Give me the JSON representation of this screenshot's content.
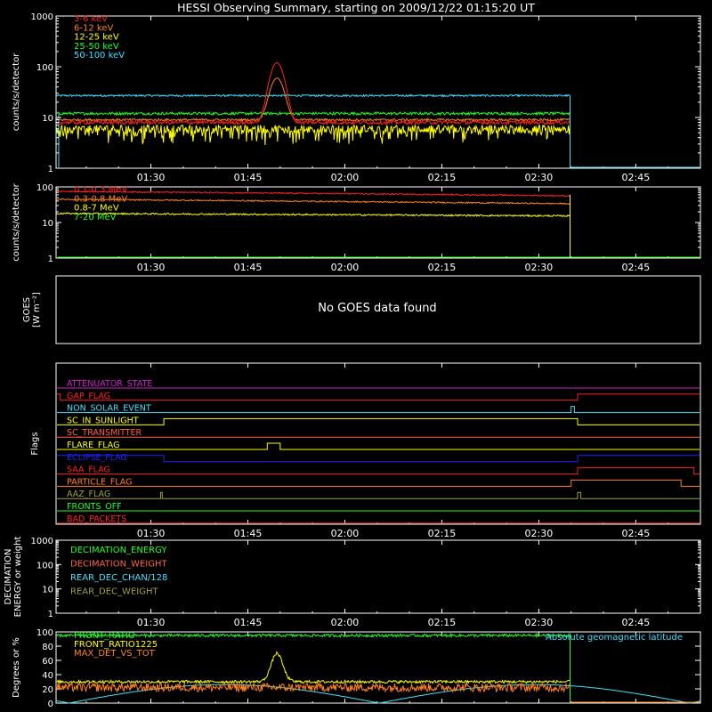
{
  "title": "HESSI Observing Summary, starting on 2009/12/22 01:15:20 UT",
  "time_ticks": [
    "01:30",
    "01:45",
    "02:00",
    "02:15",
    "02:30",
    "02:45"
  ],
  "colors": {
    "red": "#ff2020",
    "orange": "#ff8020",
    "yellow": "#ffff00",
    "green": "#20ff20",
    "cyan": "#40e0ff",
    "magenta": "#d020d0",
    "blue": "#2020ff",
    "olive": "#a0a040",
    "salmon": "#ff6040",
    "white": "#ffffff"
  },
  "goes_message": "No GOES data found",
  "chart_data": [
    {
      "id": "panel1",
      "type": "line",
      "scale": "log",
      "ylabel": "counts/s/detector",
      "yticks": [
        "1000",
        "100",
        "10",
        "1"
      ],
      "ylim": [
        1,
        1000
      ],
      "x_range": [
        "01:15:20",
        "02:55"
      ],
      "series": [
        {
          "name": "3-6 keV",
          "color": "red",
          "level": 8,
          "jitter": 0.08,
          "flare": 120
        },
        {
          "name": "6-12 keV",
          "color": "orange",
          "level": 9,
          "jitter": 0.05,
          "flare": 60
        },
        {
          "name": "12-25 keV",
          "color": "yellow",
          "level": 6,
          "jitter": 0.18,
          "flare": 0
        },
        {
          "name": "25-50 keV",
          "color": "green",
          "level": 12,
          "jitter": 0.06,
          "flare": 0
        },
        {
          "name": "50-100 keV",
          "color": "cyan",
          "level": 27,
          "jitter": 0.04,
          "flare": 0
        }
      ]
    },
    {
      "id": "panel2",
      "type": "line",
      "scale": "log",
      "ylabel": "counts/s/detector",
      "yticks": [
        "100",
        "10",
        "1"
      ],
      "ylim": [
        1,
        100
      ],
      "series": [
        {
          "name": "0.1-0.3 MeV",
          "color": "red",
          "level": 75,
          "jitter": 0.04,
          "flare": 0
        },
        {
          "name": "0.3-0.8 MeV",
          "color": "orange",
          "level": 45,
          "jitter": 0.04,
          "flare": 0
        },
        {
          "name": "0.8-7 MeV",
          "color": "yellow",
          "level": 18,
          "jitter": 0.05,
          "flare": 0
        },
        {
          "name": "7-20 MeV",
          "color": "green",
          "level": 0,
          "jitter": 0,
          "flare": 0
        }
      ]
    },
    {
      "id": "panel3",
      "type": "line",
      "ylabel": "GOES",
      "ylabel2": "[W m⁻²]"
    },
    {
      "id": "panel4",
      "type": "line",
      "ylabel": "Flags",
      "series": [
        {
          "name": "ATTENUATOR_STATE",
          "color": "magenta",
          "changes": []
        },
        {
          "name": "GAP_FLAG",
          "color": "red",
          "changes": [
            [
              "01:15:20",
              1
            ],
            [
              "01:16",
              0
            ],
            [
              "02:36",
              1
            ]
          ]
        },
        {
          "name": "NON_SOLAR_EVENT",
          "color": "cyan",
          "changes": [
            [
              "02:35",
              1
            ],
            [
              "02:35:30",
              0
            ]
          ]
        },
        {
          "name": "SC_IN_SUNLIGHT",
          "color": "yellow",
          "changes": [
            [
              "01:15:20",
              0
            ],
            [
              "01:32",
              1
            ],
            [
              "02:36",
              0
            ]
          ]
        },
        {
          "name": "SC_TRANSMITTER",
          "color": "salmon",
          "changes": []
        },
        {
          "name": "FLARE_FLAG",
          "color": "yellow",
          "changes": [
            [
              "01:48",
              1
            ],
            [
              "01:50",
              0
            ]
          ]
        },
        {
          "name": "ECLIPSE_FLAG",
          "color": "blue",
          "changes": [
            [
              "01:15:20",
              1
            ],
            [
              "01:32",
              0
            ],
            [
              "02:36",
              1
            ]
          ]
        },
        {
          "name": "SAA_FLAG",
          "color": "red",
          "changes": [
            [
              "02:36",
              1
            ],
            [
              "02:54",
              0
            ]
          ]
        },
        {
          "name": "PARTICLE_FLAG",
          "color": "orange",
          "changes": [
            [
              "02:35",
              1
            ],
            [
              "02:52",
              0
            ]
          ]
        },
        {
          "name": "AAZ_FLAG",
          "color": "olive",
          "changes": [
            [
              "01:31:30",
              1
            ],
            [
              "01:31:45",
              0
            ],
            [
              "02:36",
              1
            ],
            [
              "02:36:30",
              0
            ]
          ]
        },
        {
          "name": "FRONTS_OFF",
          "color": "green",
          "changes": []
        },
        {
          "name": "BAD_PACKETS",
          "color": "red",
          "changes": []
        }
      ]
    },
    {
      "id": "panel5",
      "type": "line",
      "scale": "log",
      "ylabel": "DECIMATION",
      "ylabel2": "ENERGY or weight",
      "yticks": [
        "1000",
        "100",
        "10",
        "1"
      ],
      "ylim": [
        1,
        1000
      ],
      "series": [
        {
          "name": "DECIMATION_ENERGY",
          "color": "green"
        },
        {
          "name": "DECIMATION_WEIGHT",
          "color": "salmon"
        },
        {
          "name": "REAR_DEC_CHAN/128",
          "color": "cyan"
        },
        {
          "name": "REAR_DEC_WEIGHT",
          "color": "olive"
        }
      ]
    },
    {
      "id": "panel6",
      "type": "line",
      "ylabel": "Degrees or %",
      "yticks": [
        "100",
        "80",
        "60",
        "40",
        "20",
        "0"
      ],
      "ylim": [
        0,
        100
      ],
      "series": [
        {
          "name": "FRONT_RATIO",
          "color": "green",
          "level": 95,
          "jitter": 2
        },
        {
          "name": "FRONT_RATIO1225",
          "color": "yellow",
          "level": 30,
          "jitter": 2
        },
        {
          "name": "MAX_DET_VS_TOT",
          "color": "orange",
          "level": 22,
          "jitter": 6
        },
        {
          "name": "Absolute geomagnetic latitude",
          "color": "cyan"
        }
      ]
    }
  ]
}
